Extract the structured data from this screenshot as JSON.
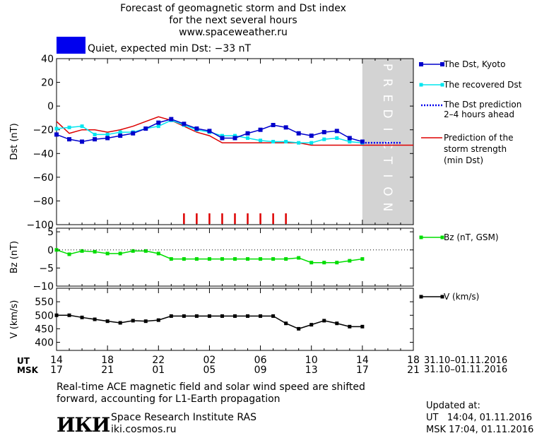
{
  "header": {
    "line1": "Forecast of geomagnetic storm and Dst index",
    "line2": "for the next several hours",
    "line3": "www.spaceweather.ru",
    "quiet_label": "Quiet, expected min Dst: −33 nT",
    "quiet_color": "#0000ee"
  },
  "legend": {
    "dst_kyoto": "The Dst, Kyoto",
    "dst_recovered": "The recovered Dst",
    "dst_prediction_1": "The Dst prediction",
    "dst_prediction_2": "2–4 hours ahead",
    "storm_1": "Prediction of the",
    "storm_2": "storm strength",
    "storm_3": "(min Dst)",
    "bz": "Bz (nT, GSM)",
    "v": "V (km/s)"
  },
  "time_axis": {
    "ut_label": "UT",
    "msk_label": "MSK",
    "ut_ticks": [
      "14",
      "18",
      "22",
      "02",
      "06",
      "10",
      "14",
      "18"
    ],
    "msk_ticks": [
      "17",
      "21",
      "01",
      "05",
      "09",
      "13",
      "17",
      "21"
    ],
    "ut_range": "31.10–01.11.2016",
    "msk_range": "31.10–01.11.2016"
  },
  "prediction_label": "PREDICTION",
  "footer": {
    "note1": "Real-time ACE magnetic field and solar wind speed are shifted",
    "note2": "forward, accounting for L1-Earth propagation",
    "institute": "Space Research Institute RAS",
    "site": "iki.cosmos.ru",
    "logo_text": "ИКИ",
    "updated_label": "Updated at:",
    "updated_ut": "UT   14:04, 01.11.2016",
    "updated_msk": "MSK 17:04, 01.11.2016"
  },
  "colors": {
    "kyoto": "#0000cc",
    "recovered": "#00e5ee",
    "prediction": "#0000ee",
    "storm": "#dd0000",
    "bz": "#00dd00",
    "v": "#000000",
    "shade": "#d3d3d3"
  },
  "chart_data": [
    {
      "type": "line",
      "name": "Dst",
      "ylabel": "Dst (nT)",
      "xlim_hours_from_14UT": [
        0,
        28
      ],
      "ylim": [
        -100,
        40
      ],
      "yticks": [
        40,
        20,
        0,
        -20,
        -40,
        -60,
        -80,
        -100
      ],
      "prediction_region_hours": [
        24,
        28
      ],
      "series": [
        {
          "name": "The Dst, Kyoto",
          "x": [
            0,
            1,
            2,
            3,
            4,
            5,
            6,
            7,
            8,
            9,
            10,
            11,
            12,
            13,
            14,
            15,
            16,
            17,
            18,
            19,
            20,
            21,
            22,
            23,
            24
          ],
          "values": [
            -24,
            -28,
            -30,
            -28,
            -27,
            -25,
            -23,
            -19,
            -14,
            -11,
            -15,
            -19,
            -21,
            -27,
            -27,
            -23,
            -20,
            -16,
            -18,
            -23,
            -25,
            -22,
            -21,
            -27,
            -30
          ]
        },
        {
          "name": "The recovered Dst",
          "x": [
            0,
            1,
            2,
            3,
            4,
            5,
            6,
            7,
            8,
            9,
            10,
            11,
            12,
            13,
            14,
            15,
            16,
            17,
            18,
            19,
            20,
            21,
            22,
            23,
            24
          ],
          "values": [
            -19,
            -18,
            -17,
            -24,
            -24,
            -22,
            -22,
            -19,
            -17,
            -12,
            -16,
            -20,
            -22,
            -25,
            -25,
            -27,
            -29,
            -30,
            -30,
            -31,
            -31,
            -28,
            -27,
            -30,
            -31
          ]
        },
        {
          "name": "The Dst prediction 2–4 hours ahead",
          "x": [
            24,
            25,
            26,
            27
          ],
          "values": [
            -31,
            -31,
            -31,
            -31
          ]
        },
        {
          "name": "Prediction of the storm strength (min Dst)",
          "x": [
            0,
            1,
            2,
            3,
            4,
            5,
            6,
            7,
            8,
            9,
            10,
            11,
            12,
            13,
            14,
            15,
            16,
            17,
            18,
            19,
            20,
            21,
            22,
            23,
            24,
            25,
            26,
            27,
            28
          ],
          "values": [
            -13,
            -23,
            -20,
            -20,
            -22,
            -20,
            -17,
            -13,
            -9,
            -12,
            -17,
            -22,
            -25,
            -31,
            -31,
            -31,
            -31,
            -31,
            -31,
            -31,
            -33,
            -33,
            -33,
            -33,
            -33,
            -33,
            -33,
            -33,
            -33
          ]
        }
      ],
      "event_marks_hours": [
        10,
        11,
        12,
        13,
        14,
        15,
        16,
        17,
        18
      ]
    },
    {
      "type": "line",
      "name": "Bz",
      "ylabel": "Bz (nT)",
      "ylim": [
        -10,
        6
      ],
      "yticks": [
        5,
        0,
        -5,
        -10
      ],
      "series": [
        {
          "name": "Bz (nT, GSM)",
          "x": [
            0,
            1,
            2,
            3,
            4,
            5,
            6,
            7,
            8,
            9,
            10,
            11,
            12,
            13,
            14,
            15,
            16,
            17,
            18,
            19,
            20,
            21,
            22,
            23,
            24
          ],
          "values": [
            0,
            -1.2,
            -0.3,
            -0.5,
            -1,
            -1,
            -0.3,
            -0.3,
            -1,
            -2.5,
            -2.5,
            -2.5,
            -2.5,
            -2.5,
            -2.5,
            -2.5,
            -2.5,
            -2.5,
            -2.5,
            -2.2,
            -3.5,
            -3.5,
            -3.5,
            -3,
            -2.5
          ]
        }
      ]
    },
    {
      "type": "line",
      "name": "V",
      "ylabel": "V (km/s)",
      "ylim": [
        370,
        600
      ],
      "yticks": [
        550,
        500,
        450,
        400
      ],
      "series": [
        {
          "name": "V (km/s)",
          "x": [
            0,
            1,
            2,
            3,
            4,
            5,
            6,
            7,
            8,
            9,
            10,
            11,
            12,
            13,
            14,
            15,
            16,
            17,
            18,
            19,
            20,
            21,
            22,
            23,
            24
          ],
          "values": [
            500,
            500,
            492,
            485,
            478,
            472,
            480,
            478,
            482,
            497,
            497,
            497,
            497,
            497,
            497,
            497,
            497,
            497,
            470,
            450,
            465,
            480,
            470,
            458,
            458
          ]
        }
      ]
    }
  ]
}
